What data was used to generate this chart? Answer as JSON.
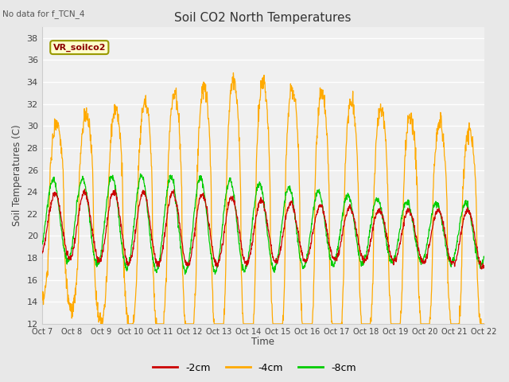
{
  "title": "Soil CO2 North Temperatures",
  "subtitle": "No data for f_TCN_4",
  "ylabel": "Soil Temperatures (C)",
  "xlabel": "Time",
  "ylim": [
    12,
    39
  ],
  "yticks": [
    12,
    14,
    16,
    18,
    20,
    22,
    24,
    26,
    28,
    30,
    32,
    34,
    36,
    38
  ],
  "xtick_labels": [
    "Oct 7",
    "Oct 8",
    "Oct 9",
    "Oct 10",
    "Oct 11",
    "Oct 12",
    "Oct 13",
    "Oct 14",
    "Oct 15",
    "Oct 16",
    "Oct 17",
    "Oct 18",
    "Oct 19",
    "Oct 20",
    "Oct 21",
    "Oct 22"
  ],
  "legend_label": "VR_soilco2",
  "line_labels": [
    "-2cm",
    "-4cm",
    "-8cm"
  ],
  "line_colors": [
    "#cc0000",
    "#ffaa00",
    "#00cc00"
  ],
  "bg_color": "#e8e8e8",
  "plot_bg_color": "#f0f0f0"
}
